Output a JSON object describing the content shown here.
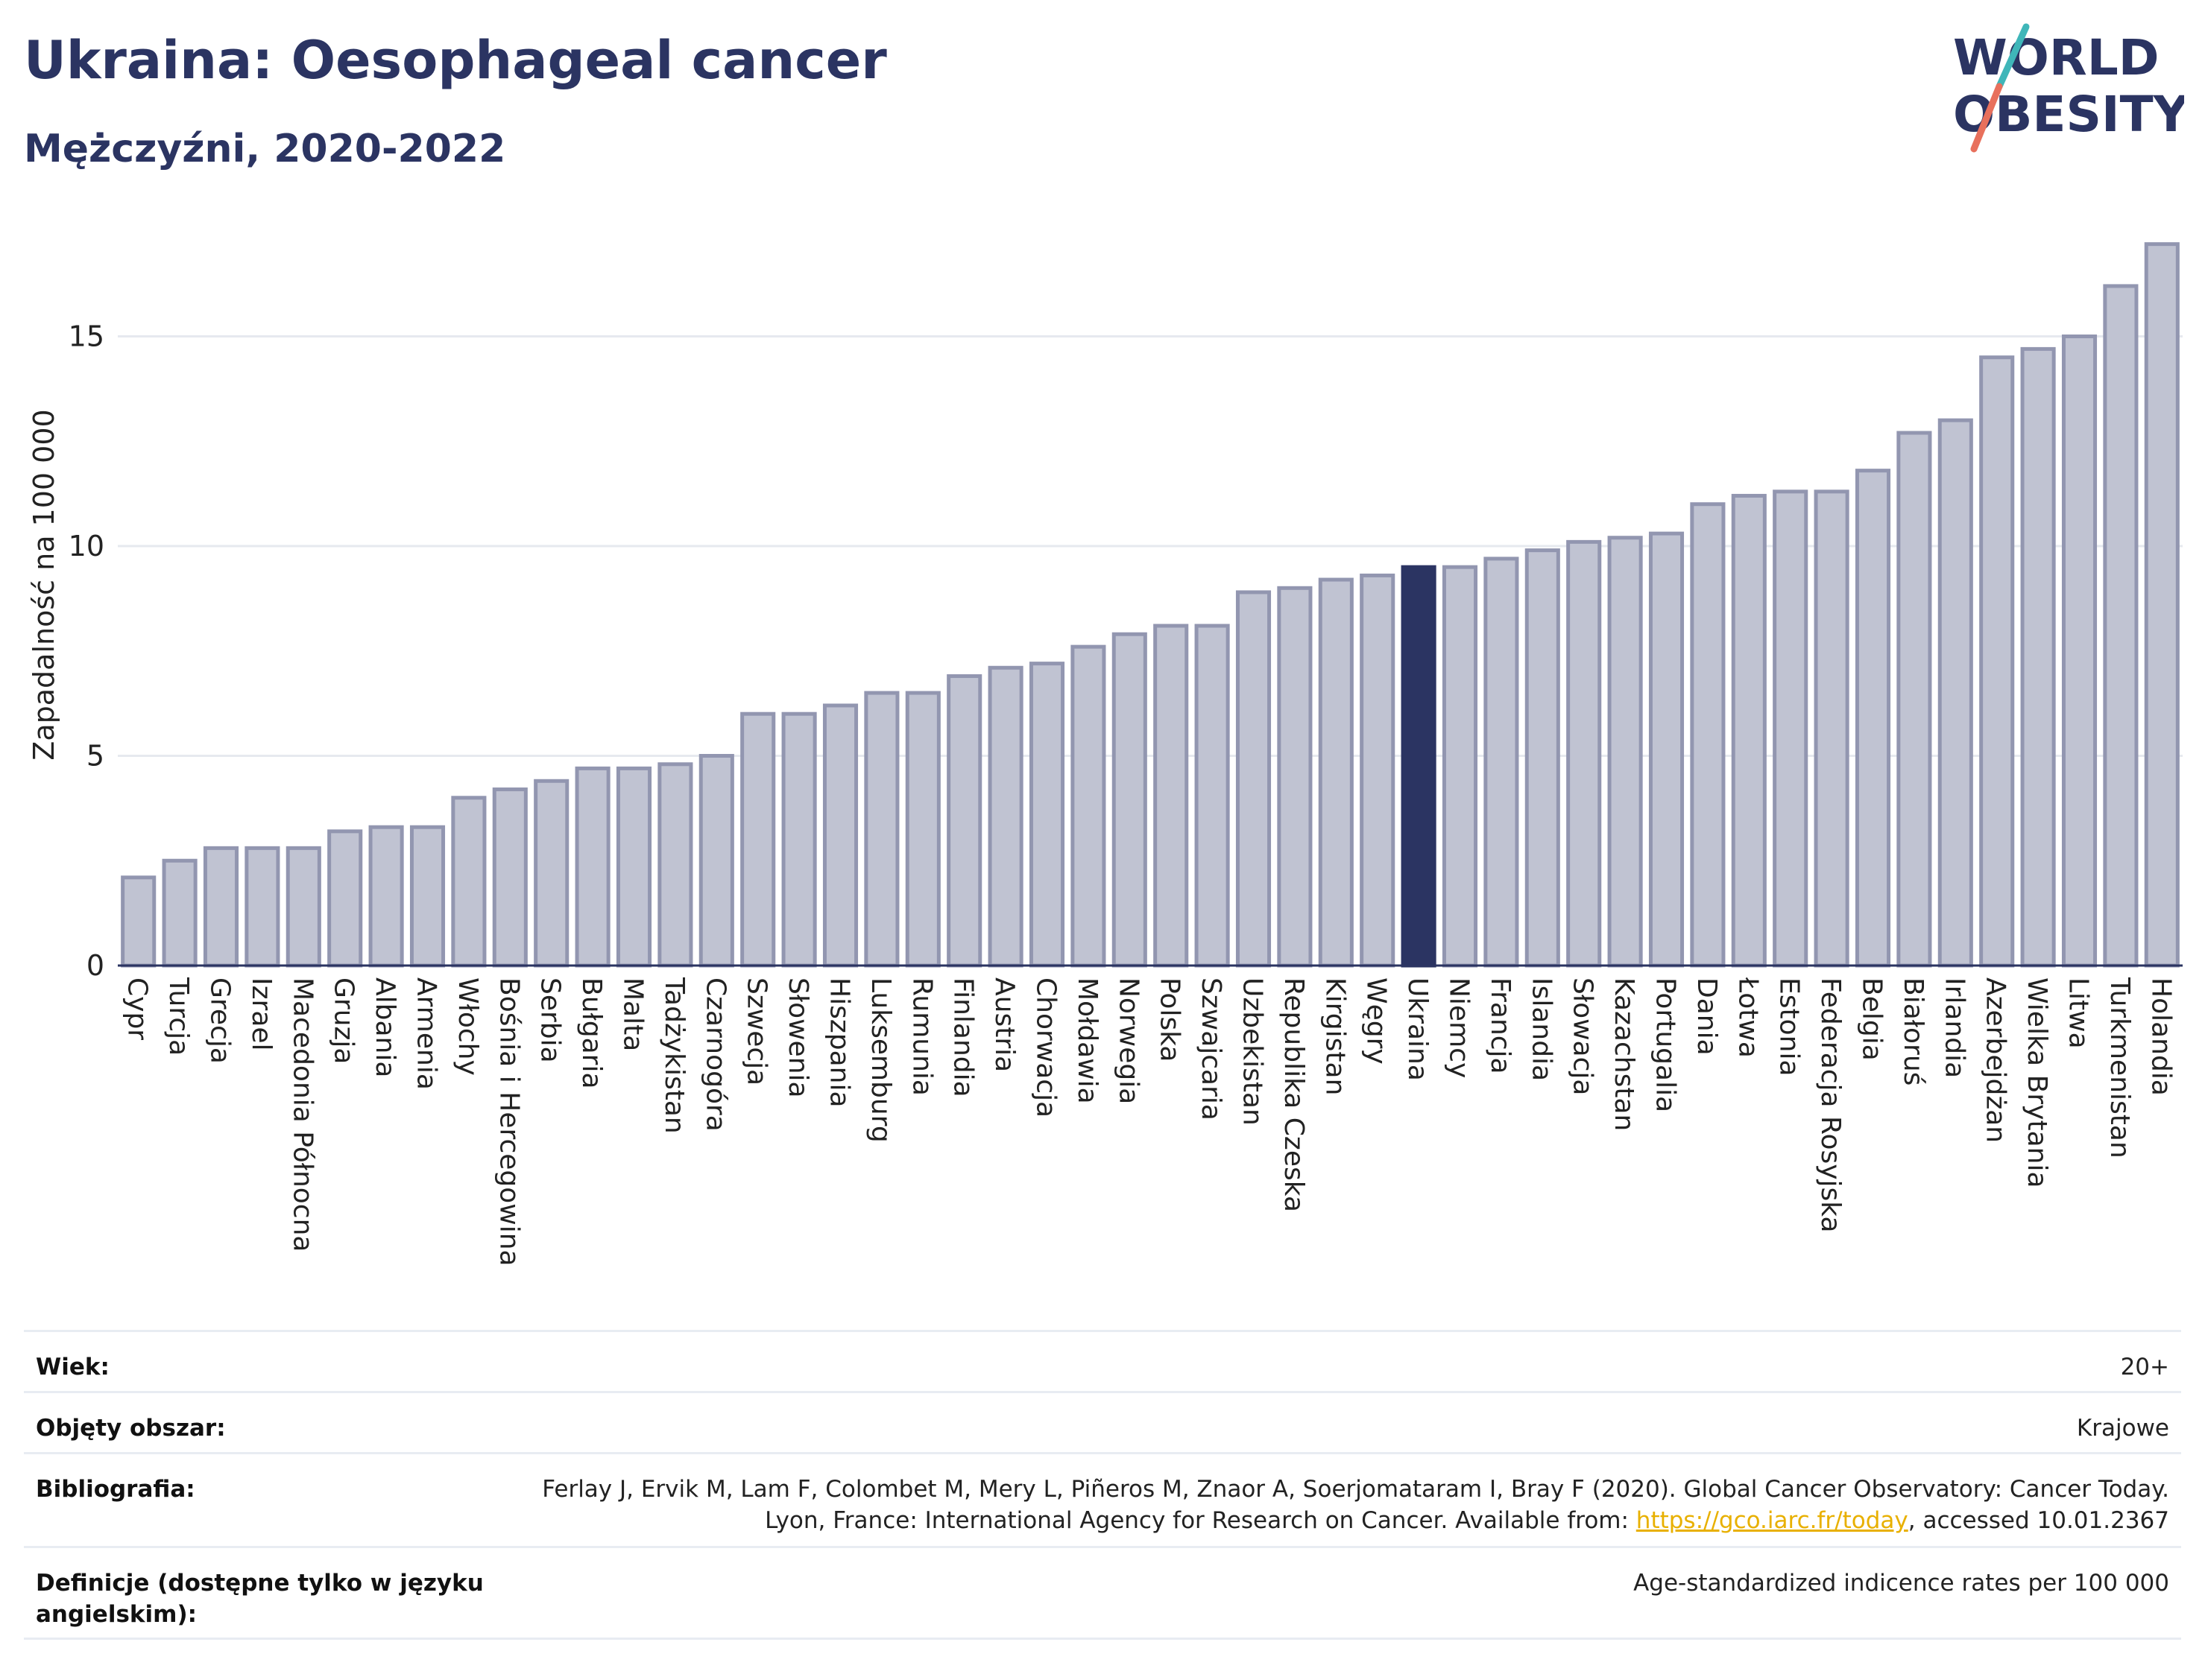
{
  "header": {
    "title": "Ukraina: Oesophageal cancer",
    "subtitle": "Mężczyźni, 2020-2022",
    "logo_line1": "WORLD",
    "logo_line2": "OBESITY"
  },
  "colors": {
    "title": "#2b3462",
    "bar": "#c0c3d2",
    "bar_stroke": "#9296b0",
    "bar_highlight": "#2b3462",
    "grid": "#e6e9ef",
    "logo_teal": "#3fb6b9",
    "logo_coral": "#e8705c",
    "link": "#e8b000"
  },
  "chart_data": {
    "type": "bar",
    "ylabel": "Zapadalność na 100 000",
    "ylim": [
      0,
      18
    ],
    "yticks": [
      0,
      5,
      10,
      15
    ],
    "grid": true,
    "highlight": "Ukraina",
    "categories": [
      "Cypr",
      "Turcja",
      "Grecja",
      "Izrael",
      "Macedonia Północna",
      "Gruzja",
      "Albania",
      "Armenia",
      "Włochy",
      "Bośnia i Hercegowina",
      "Serbia",
      "Bułgaria",
      "Malta",
      "Tadżykistan",
      "Czarnogóra",
      "Szwecja",
      "Słowenia",
      "Hiszpania",
      "Luksemburg",
      "Rumunia",
      "Finlandia",
      "Austria",
      "Chorwacja",
      "Mołdawia",
      "Norwegia",
      "Polska",
      "Szwajcaria",
      "Uzbekistan",
      "Republika Czeska",
      "Kirgistan",
      "Węgry",
      "Ukraina",
      "Niemcy",
      "Francja",
      "Islandia",
      "Słowacja",
      "Kazachstan",
      "Portugalia",
      "Dania",
      "Łotwa",
      "Estonia",
      "Federacja Rosyjska",
      "Belgia",
      "Białoruś",
      "Irlandia",
      "Azerbejdżan",
      "Wielka Brytania",
      "Litwa",
      "Turkmenistan",
      "Holandia"
    ],
    "values": [
      2.1,
      2.5,
      2.8,
      2.8,
      2.8,
      3.2,
      3.3,
      3.3,
      4.0,
      4.2,
      4.4,
      4.7,
      4.7,
      4.8,
      5.0,
      6.0,
      6.0,
      6.2,
      6.5,
      6.5,
      6.9,
      7.1,
      7.2,
      7.6,
      7.9,
      8.1,
      8.1,
      8.9,
      9.0,
      9.2,
      9.3,
      9.5,
      9.5,
      9.7,
      9.9,
      10.1,
      10.2,
      10.3,
      11.0,
      11.2,
      11.3,
      11.3,
      11.8,
      12.7,
      13.0,
      14.5,
      14.7,
      15.0,
      16.2,
      17.2
    ]
  },
  "meta": {
    "age_label": "Wiek:",
    "age_value": "20+",
    "area_label": "Objęty obszar:",
    "area_value": "Krajowe",
    "bib_label": "Bibliografia:",
    "bib_text1": "Ferlay J, Ervik M, Lam F, Colombet M, Mery L, Piñeros M, Znaor A, Soerjomataram I, Bray F (2020). Global Cancer Observatory: Cancer Today. Lyon, France: International Agency for Research on Cancer. Available from: ",
    "bib_link": "https://gco.iarc.fr/today",
    "bib_text2": ", accessed 10.01.2367",
    "def_label": "Definicje (dostępne tylko w języku angielskim):",
    "def_value": "Age-standardized indicence rates per 100 000"
  }
}
